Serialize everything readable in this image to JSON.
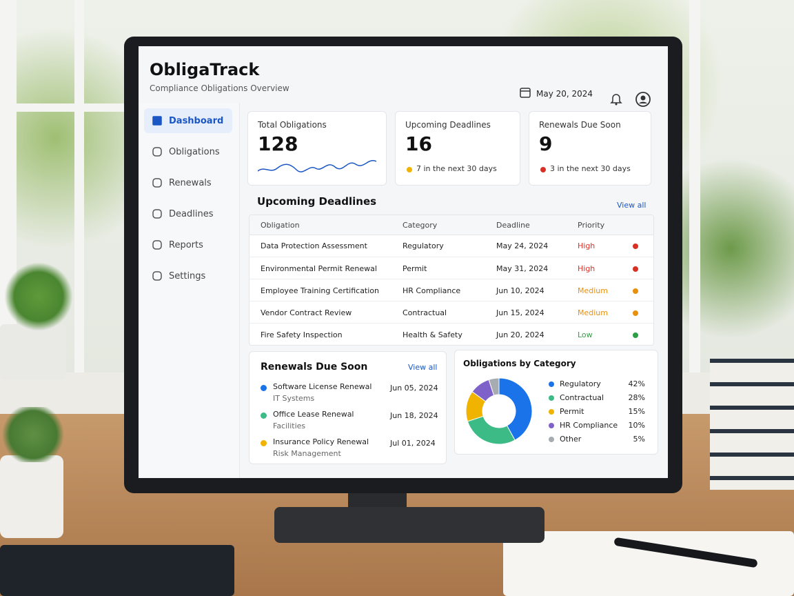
{
  "header": {
    "title": "ObligaTrack",
    "subtitle": "Compliance Obligations Overview",
    "date": "May 20, 2024"
  },
  "nav": [
    "Dashboard",
    "Obligations",
    "Renewals",
    "Deadlines",
    "Reports",
    "Settings"
  ],
  "stats": [
    {
      "label": "Total Obligations",
      "value": 128
    },
    {
      "label": "Upcoming Deadlines",
      "value": 16,
      "note": "7 in the next 30 days",
      "color": "#f0b400"
    },
    {
      "label": "Renewals Due Soon",
      "value": 9,
      "note": "3 in the next 30 days",
      "color": "#d93025"
    }
  ],
  "deadlines": {
    "title": "Upcoming Deadlines",
    "link": "View all",
    "columns": [
      "Obligation",
      "Category",
      "Deadline",
      "Priority"
    ],
    "rows": [
      {
        "cells": [
          "Data Protection Assessment",
          "Regulatory",
          "May 24, 2024",
          "High"
        ],
        "color": "#d93025"
      },
      {
        "cells": [
          "Environmental Permit Renewal",
          "Permit",
          "May 31, 2024",
          "High"
        ],
        "color": "#d93025"
      },
      {
        "cells": [
          "Employee Training Certification",
          "HR Compliance",
          "Jun 10, 2024",
          "Medium"
        ],
        "color": "#e8900c"
      },
      {
        "cells": [
          "Vendor Contract Review",
          "Contractual",
          "Jun 15, 2024",
          "Medium"
        ],
        "color": "#e8900c"
      },
      {
        "cells": [
          "Fire Safety Inspection",
          "Health & Safety",
          "Jun 20, 2024",
          "Low"
        ],
        "color": "#2e9e44"
      }
    ]
  },
  "renewals": {
    "title": "Renewals Due Soon",
    "link": "View all",
    "items": [
      {
        "name": "Software License Renewal",
        "group": "IT Systems",
        "date": "Jun 05, 2024",
        "color": "#1a73e8"
      },
      {
        "name": "Office Lease Renewal",
        "group": "Facilities",
        "date": "Jun 18, 2024",
        "color": "#3dbb86"
      },
      {
        "name": "Insurance Policy Renewal",
        "group": "Risk Management",
        "date": "Jul 01, 2024",
        "color": "#f0b400"
      }
    ]
  },
  "chart_data": {
    "type": "pie",
    "title": "Obligations by Category",
    "categories": [
      "Regulatory",
      "Contractual",
      "Permit",
      "HR Compliance",
      "Other"
    ],
    "values": [
      42,
      28,
      15,
      10,
      5
    ],
    "value_labels": [
      "42%",
      "28%",
      "15%",
      "10%",
      "5%"
    ],
    "colors": [
      "#1a73e8",
      "#3dbb86",
      "#f0b400",
      "#7e62c9",
      "#a7abb2"
    ]
  }
}
